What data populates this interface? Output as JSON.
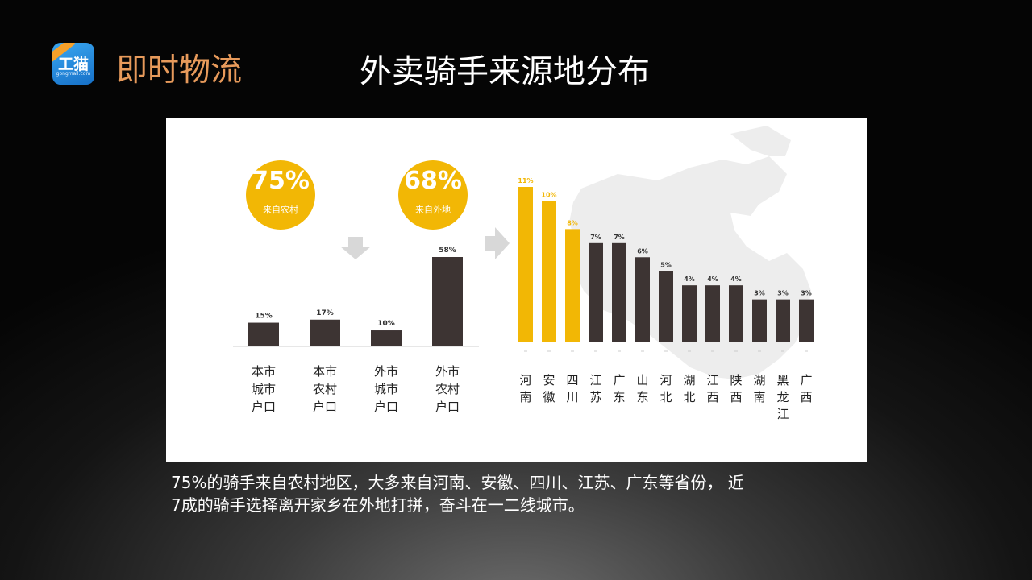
{
  "header": {
    "logo_text": "工猫",
    "logo_sub": "gongmall.com",
    "brand": "即时物流",
    "title": "外卖骑手来源地分布"
  },
  "colors": {
    "accent": "#f2b705",
    "bar_dark": "#3d3433",
    "brand_orange": "#e79a5b"
  },
  "stats": [
    {
      "value": "75%",
      "label": "来自农村"
    },
    {
      "value": "68%",
      "label": "来自外地"
    }
  ],
  "chart_data": [
    {
      "type": "bar",
      "categories": [
        "本市城市户口",
        "本市农村户口",
        "外市城市户口",
        "外市农村户口"
      ],
      "category_lines": [
        [
          "本市",
          "城市",
          "户口"
        ],
        [
          "本市",
          "农村",
          "户口"
        ],
        [
          "外市",
          "城市",
          "户口"
        ],
        [
          "外市",
          "农村",
          "户口"
        ]
      ],
      "values": [
        15,
        17,
        10,
        58
      ],
      "data_labels": [
        "15%",
        "17%",
        "10%",
        "58%"
      ],
      "ylim": [
        0,
        58
      ]
    },
    {
      "type": "bar",
      "categories": [
        "河南",
        "安徽",
        "四川",
        "江苏",
        "广东",
        "山东",
        "河北",
        "湖北",
        "江西",
        "陕西",
        "湖南",
        "黑龙江",
        "广西"
      ],
      "category_lines": [
        [
          "河",
          "南"
        ],
        [
          "安",
          "徽"
        ],
        [
          "四",
          "川"
        ],
        [
          "江",
          "苏"
        ],
        [
          "广",
          "东"
        ],
        [
          "山",
          "东"
        ],
        [
          "河",
          "北"
        ],
        [
          "湖",
          "北"
        ],
        [
          "江",
          "西"
        ],
        [
          "陕",
          "西"
        ],
        [
          "湖",
          "南"
        ],
        [
          "黑",
          "龙",
          "江"
        ],
        [
          "广",
          "西"
        ]
      ],
      "values": [
        11,
        10,
        8,
        7,
        7,
        6,
        5,
        4,
        4,
        4,
        3,
        3,
        3
      ],
      "data_labels": [
        "11%",
        "10%",
        "8%",
        "7%",
        "7%",
        "6%",
        "5%",
        "4%",
        "4%",
        "4%",
        "3%",
        "3%",
        "3%"
      ],
      "highlight_count": 3,
      "ylim": [
        0,
        11
      ]
    }
  ],
  "caption": {
    "line1": "75%的骑手来自农村地区，大多来自河南、安徽、四川、江苏、广东等省份， 近",
    "line2": "7成的骑手选择离开家乡在外地打拼，奋斗在一二线城市。"
  }
}
